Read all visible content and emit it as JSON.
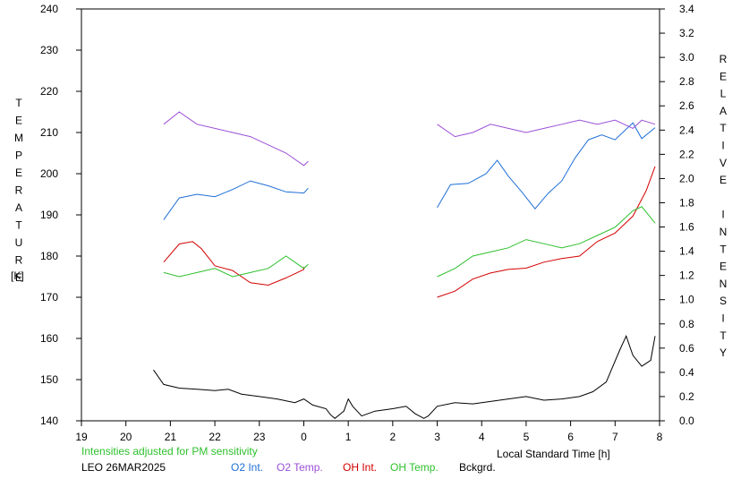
{
  "chart_data": {
    "type": "line",
    "xlabel": "Local Standard Time [h]",
    "x_ticks": [
      "19",
      "20",
      "21",
      "22",
      "23",
      "0",
      "1",
      "2",
      "3",
      "4",
      "5",
      "6",
      "7",
      "8"
    ],
    "xlim": [
      19,
      32
    ],
    "y_left_label": "TEMPERATURE",
    "y_left_unit": "[K]",
    "y_left_ticks": [
      240,
      230,
      220,
      210,
      200,
      190,
      180,
      170,
      160,
      150,
      140
    ],
    "ylim_left": [
      140,
      240
    ],
    "y_right_label": "RELATIVE INTENSITY",
    "y_right_ticks": [
      "3.4",
      "3.2",
      "3.0",
      "2.8",
      "2.6",
      "2.4",
      "2.2",
      "2.0",
      "1.8",
      "1.6",
      "1.4",
      "1.2",
      "1.0",
      "0.8",
      "0.6",
      "0.4",
      "0.2",
      "0.0"
    ],
    "ylim_right": [
      0,
      3.4
    ],
    "note": "Intensities adjusted for PM sensitivity",
    "site_date": "LEO 26MAR2025",
    "legend": [
      "O2 Int.",
      "O2 Temp.",
      "OH Int.",
      "OH Temp.",
      "Bckgrd."
    ],
    "grid": false,
    "series": [
      {
        "name": "O2 Int.",
        "axis": "right",
        "color": "#1f6fd6",
        "segments": [
          [
            [
              20.85,
              1.66
            ],
            [
              21.2,
              1.84
            ],
            [
              21.6,
              1.87
            ],
            [
              22.0,
              1.85
            ],
            [
              22.4,
              1.91
            ],
            [
              22.8,
              1.98
            ],
            [
              23.2,
              1.94
            ],
            [
              23.6,
              1.89
            ],
            [
              24.0,
              1.88
            ],
            [
              24.1,
              1.92
            ]
          ],
          [
            [
              27.0,
              1.76
            ],
            [
              27.3,
              1.95
            ],
            [
              27.7,
              1.96
            ],
            [
              28.1,
              2.04
            ],
            [
              28.35,
              2.15
            ],
            [
              28.6,
              2.02
            ],
            [
              28.9,
              1.89
            ],
            [
              29.2,
              1.75
            ],
            [
              29.5,
              1.88
            ],
            [
              29.8,
              1.98
            ],
            [
              30.1,
              2.17
            ],
            [
              30.4,
              2.32
            ],
            [
              30.7,
              2.36
            ],
            [
              31.0,
              2.32
            ],
            [
              31.4,
              2.46
            ],
            [
              31.6,
              2.33
            ],
            [
              31.9,
              2.42
            ]
          ]
        ]
      },
      {
        "name": "O2 Temp.",
        "axis": "left",
        "color": "#9b4fd6",
        "segments": [
          [
            [
              20.85,
              212
            ],
            [
              21.2,
              215
            ],
            [
              21.6,
              212
            ],
            [
              22.0,
              211
            ],
            [
              22.4,
              210
            ],
            [
              22.8,
              209
            ],
            [
              23.2,
              207
            ],
            [
              23.6,
              205
            ],
            [
              24.0,
              202
            ],
            [
              24.1,
              203
            ]
          ],
          [
            [
              27.0,
              212
            ],
            [
              27.4,
              209
            ],
            [
              27.8,
              210
            ],
            [
              28.2,
              212
            ],
            [
              28.6,
              211
            ],
            [
              29.0,
              210
            ],
            [
              29.4,
              211
            ],
            [
              29.8,
              212
            ],
            [
              30.2,
              213
            ],
            [
              30.6,
              212
            ],
            [
              31.0,
              213
            ],
            [
              31.4,
              211
            ],
            [
              31.6,
              213
            ],
            [
              31.9,
              212
            ]
          ]
        ]
      },
      {
        "name": "OH Int.",
        "axis": "right",
        "color": "#d40000",
        "segments": [
          [
            [
              20.85,
              1.31
            ],
            [
              21.2,
              1.46
            ],
            [
              21.5,
              1.48
            ],
            [
              21.7,
              1.42
            ],
            [
              22.0,
              1.28
            ],
            [
              22.4,
              1.24
            ],
            [
              22.8,
              1.14
            ],
            [
              23.2,
              1.12
            ],
            [
              23.6,
              1.18
            ],
            [
              24.0,
              1.25
            ],
            [
              24.0,
              1.27
            ]
          ],
          [
            [
              27.0,
              1.02
            ],
            [
              27.4,
              1.07
            ],
            [
              27.8,
              1.17
            ],
            [
              28.2,
              1.22
            ],
            [
              28.6,
              1.25
            ],
            [
              29.0,
              1.26
            ],
            [
              29.4,
              1.31
            ],
            [
              29.8,
              1.34
            ],
            [
              30.2,
              1.36
            ],
            [
              30.6,
              1.48
            ],
            [
              31.0,
              1.55
            ],
            [
              31.4,
              1.69
            ],
            [
              31.7,
              1.9
            ],
            [
              31.9,
              2.1
            ]
          ]
        ]
      },
      {
        "name": "OH Temp.",
        "axis": "left",
        "color": "#2ec02e",
        "segments": [
          [
            [
              20.85,
              176
            ],
            [
              21.2,
              175
            ],
            [
              21.6,
              176
            ],
            [
              22.0,
              177
            ],
            [
              22.4,
              175
            ],
            [
              22.8,
              176
            ],
            [
              23.2,
              177
            ],
            [
              23.6,
              180
            ],
            [
              24.0,
              177
            ],
            [
              24.1,
              178
            ]
          ],
          [
            [
              27.0,
              175
            ],
            [
              27.4,
              177
            ],
            [
              27.8,
              180
            ],
            [
              28.2,
              181
            ],
            [
              28.6,
              182
            ],
            [
              29.0,
              184
            ],
            [
              29.4,
              183
            ],
            [
              29.8,
              182
            ],
            [
              30.2,
              183
            ],
            [
              30.6,
              185
            ],
            [
              31.0,
              187
            ],
            [
              31.4,
              191
            ],
            [
              31.6,
              192
            ],
            [
              31.9,
              188
            ]
          ]
        ]
      },
      {
        "name": "Bckgrd.",
        "axis": "right",
        "color": "#000000",
        "segments": [
          [
            [
              20.62,
              0.42
            ],
            [
              20.85,
              0.3
            ],
            [
              21.2,
              0.27
            ],
            [
              21.6,
              0.26
            ],
            [
              22.0,
              0.25
            ],
            [
              22.3,
              0.26
            ],
            [
              22.6,
              0.22
            ],
            [
              23.0,
              0.2
            ],
            [
              23.4,
              0.18
            ],
            [
              23.8,
              0.15
            ],
            [
              24.0,
              0.18
            ],
            [
              24.2,
              0.13
            ],
            [
              24.5,
              0.1
            ],
            [
              24.6,
              0.05
            ],
            [
              24.7,
              0.02
            ],
            [
              24.9,
              0.08
            ],
            [
              25.0,
              0.18
            ],
            [
              25.1,
              0.12
            ],
            [
              25.3,
              0.04
            ],
            [
              25.6,
              0.08
            ],
            [
              26.0,
              0.1
            ],
            [
              26.3,
              0.12
            ],
            [
              26.5,
              0.06
            ],
            [
              26.7,
              0.02
            ],
            [
              26.8,
              0.04
            ],
            [
              27.0,
              0.12
            ],
            [
              27.4,
              0.15
            ],
            [
              27.8,
              0.14
            ],
            [
              28.2,
              0.16
            ],
            [
              28.6,
              0.18
            ],
            [
              29.0,
              0.2
            ],
            [
              29.4,
              0.17
            ],
            [
              29.8,
              0.18
            ],
            [
              30.2,
              0.2
            ],
            [
              30.5,
              0.24
            ],
            [
              30.8,
              0.32
            ],
            [
              31.1,
              0.58
            ],
            [
              31.25,
              0.7
            ],
            [
              31.4,
              0.54
            ],
            [
              31.6,
              0.45
            ],
            [
              31.8,
              0.5
            ],
            [
              31.9,
              0.7
            ]
          ]
        ]
      }
    ]
  }
}
